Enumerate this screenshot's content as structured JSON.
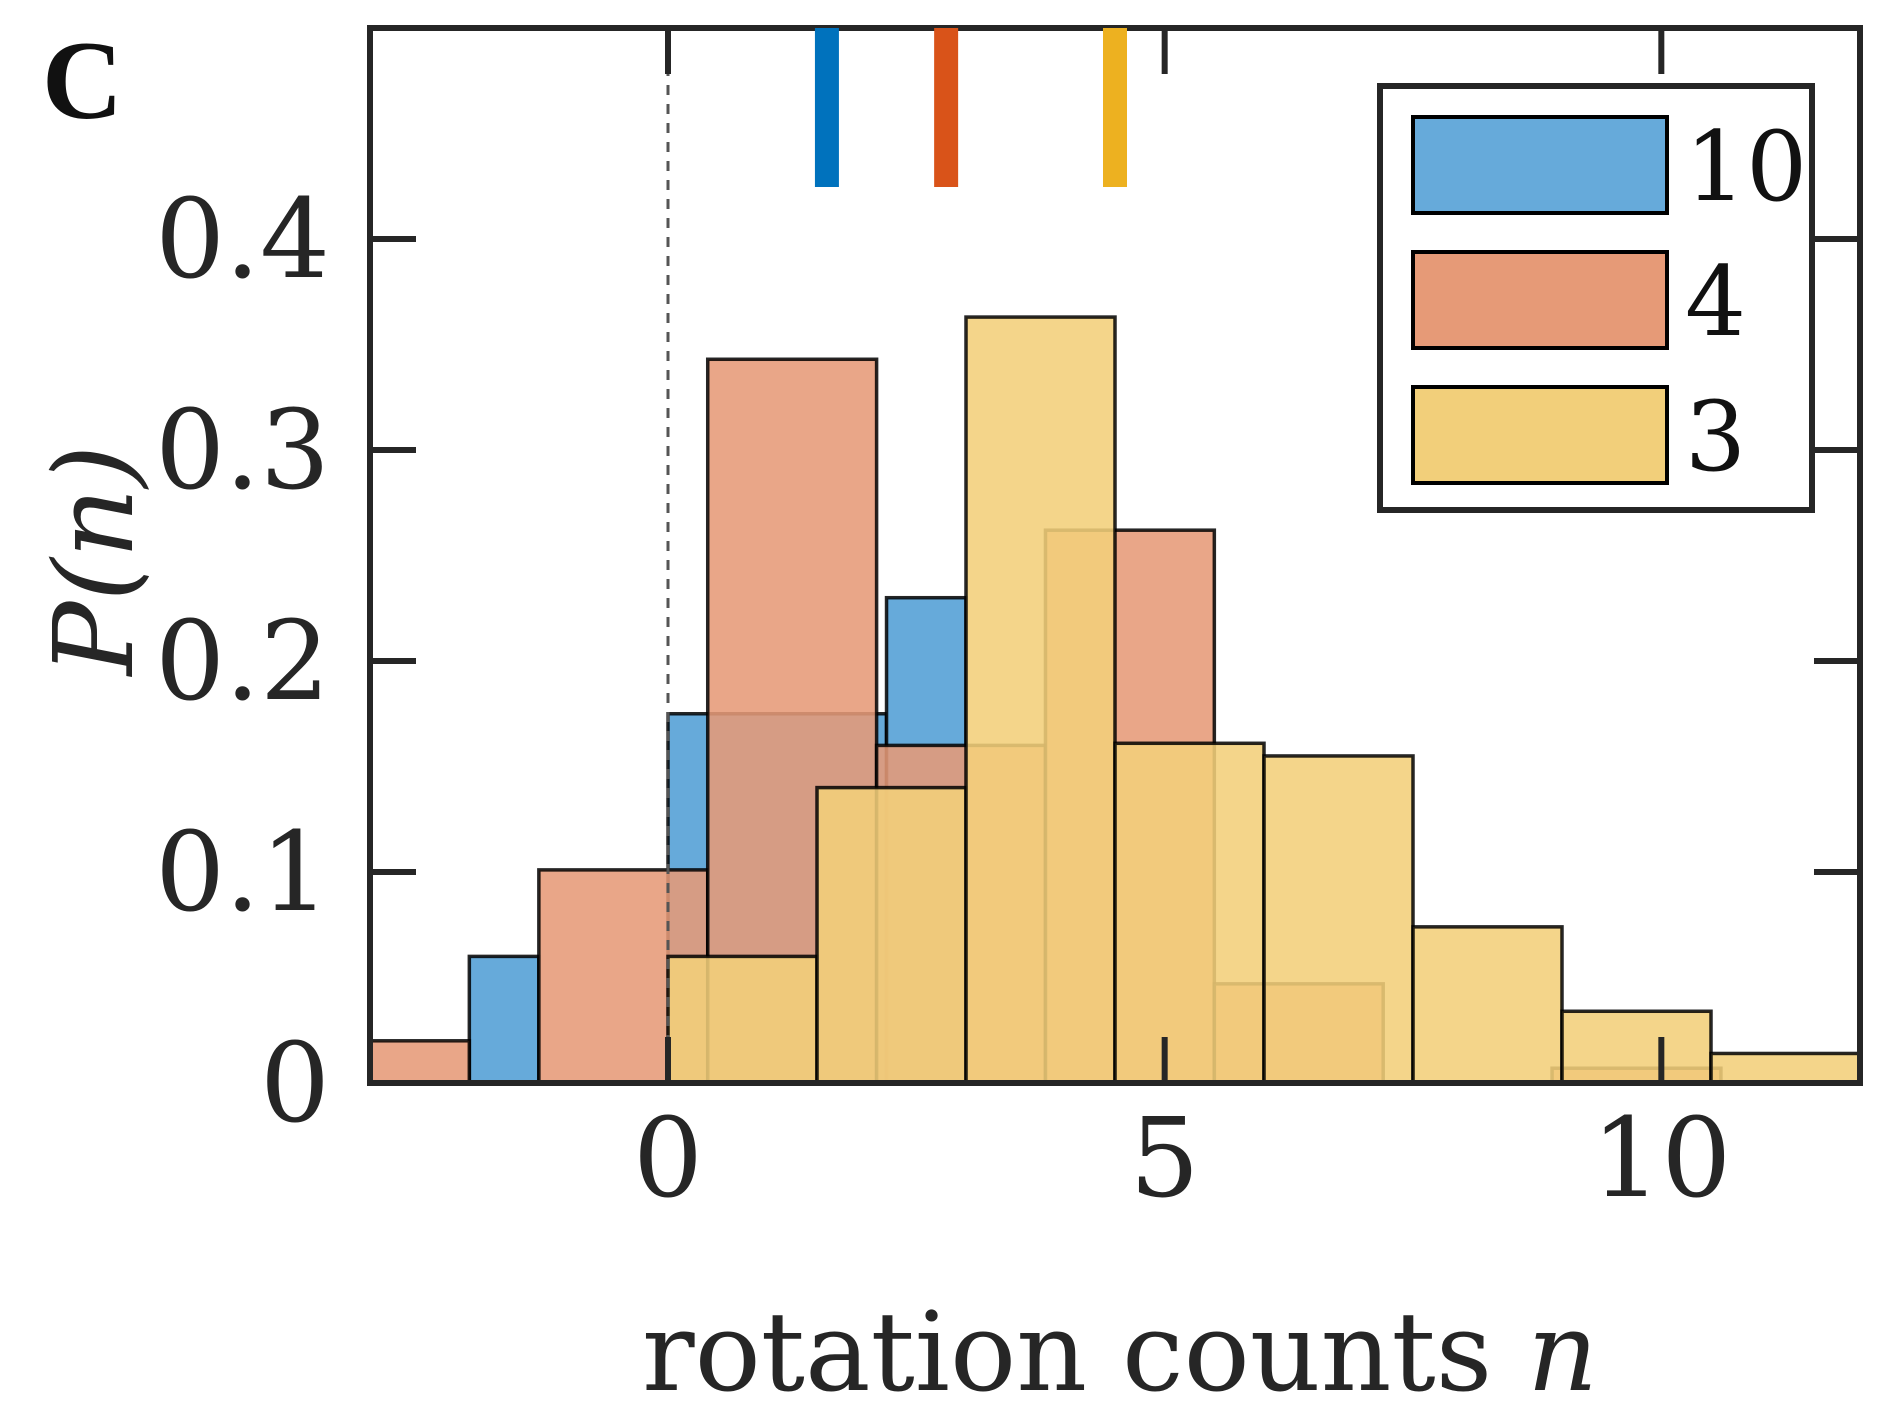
{
  "chart_data": {
    "type": "bar",
    "panel_label": "C",
    "xlabel": "rotation counts",
    "xlabel_var": "n",
    "ylabel": "P(n)",
    "xlim": [
      -3,
      12
    ],
    "ylim": [
      0,
      0.5
    ],
    "xticks": [
      0,
      5,
      10
    ],
    "xtick_labels": [
      "0",
      "5",
      "10"
    ],
    "yticks": [
      0,
      0.1,
      0.2,
      0.3,
      0.4
    ],
    "ytick_labels": [
      "0",
      "0.1",
      "0.2",
      "0.3",
      "0.4"
    ],
    "legend": {
      "position": "top-right",
      "entries": [
        "10",
        "4",
        "3"
      ]
    },
    "zero_reference_line": 0,
    "series": [
      {
        "name": "10",
        "color": "#0072BD",
        "fill": "#66AADA",
        "mean_marker": 1.6,
        "bins": [
          {
            "x0": -2,
            "x1": -1.3,
            "value": 0.06
          },
          {
            "x0": 0,
            "x1": 2.2,
            "value": 0.175
          },
          {
            "x0": 2.2,
            "x1": 3,
            "value": 0.23
          }
        ]
      },
      {
        "name": "4",
        "color": "#D95319",
        "fill": "#E69A77",
        "mean_marker": 2.8,
        "bins": [
          {
            "x0": -3,
            "x1": -2,
            "value": 0.02
          },
          {
            "x0": -1.3,
            "x1": 0.4,
            "value": 0.101
          },
          {
            "x0": 0.4,
            "x1": 2.1,
            "value": 0.343
          },
          {
            "x0": 2.1,
            "x1": 3.8,
            "value": 0.16
          },
          {
            "x0": 3.8,
            "x1": 5.5,
            "value": 0.262
          },
          {
            "x0": 5.5,
            "x1": 7.2,
            "value": 0.047
          },
          {
            "x0": 7.2,
            "x1": 8.9,
            "value": 0.0
          },
          {
            "x0": 8.9,
            "x1": 10.6,
            "value": 0.007
          }
        ]
      },
      {
        "name": "3",
        "color": "#EDB120",
        "fill": "#F2CF7A",
        "mean_marker": 4.5,
        "bins": [
          {
            "x0": 0,
            "x1": 1.5,
            "value": 0.06
          },
          {
            "x0": 1.5,
            "x1": 3,
            "value": 0.14
          },
          {
            "x0": 3,
            "x1": 4.5,
            "value": 0.363
          },
          {
            "x0": 4.5,
            "x1": 6,
            "value": 0.161
          },
          {
            "x0": 6,
            "x1": 7.5,
            "value": 0.155
          },
          {
            "x0": 7.5,
            "x1": 9,
            "value": 0.074
          },
          {
            "x0": 9,
            "x1": 10.5,
            "value": 0.034
          },
          {
            "x0": 10.5,
            "x1": 12,
            "value": 0.014
          }
        ]
      }
    ]
  }
}
